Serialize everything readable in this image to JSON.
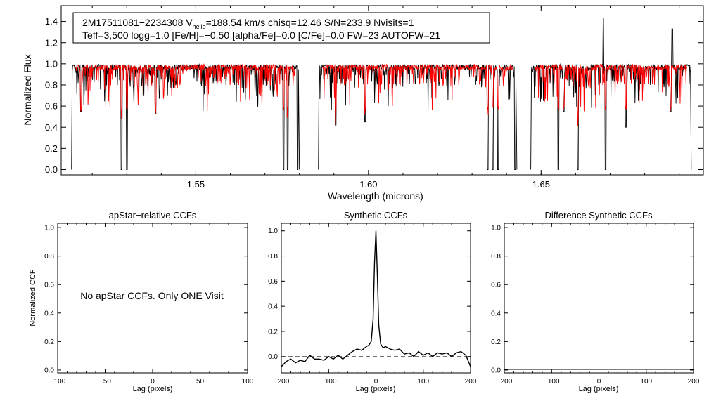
{
  "chart_data": [
    {
      "type": "line",
      "info_box": {
        "line1_prefix": "2M17511081−2234308  V",
        "line1_sub": "helio",
        "line1_suffix": "=188.54 km/s  chisq=12.46  S/N=233.9  Nvisits=1",
        "line2": "Teff=3,500 logg=1.0 [Fe/H]=−0.50 [alpha/Fe]=0.0 [C/Fe]=0.0 FW=23 AUTOFW=21"
      },
      "xlabel": "Wavelength (microns)",
      "ylabel": "Normalized Flux",
      "xlim": [
        1.511,
        1.697
      ],
      "ylim": [
        -0.05,
        1.55
      ],
      "xticks": [
        1.55,
        1.6,
        1.65
      ],
      "xtick_labels": [
        "1.55",
        "1.60",
        "1.65"
      ],
      "yticks": [
        0.0,
        0.2,
        0.4,
        0.6,
        0.8,
        1.0,
        1.2,
        1.4
      ],
      "ytick_labels": [
        "0.0",
        "0.2",
        "0.4",
        "0.6",
        "0.8",
        "1.0",
        "1.2",
        "1.4"
      ],
      "chips": [
        [
          1.514,
          1.58
        ],
        [
          1.5855,
          1.643
        ],
        [
          1.647,
          1.6935
        ]
      ],
      "strong_lines": [
        {
          "x": 1.5167,
          "y": 0.55
        },
        {
          "x": 1.5285,
          "y": 0.0
        },
        {
          "x": 1.53,
          "y": 0.0
        },
        {
          "x": 1.5383,
          "y": 0.53
        },
        {
          "x": 1.5754,
          "y": 0.0
        },
        {
          "x": 1.5766,
          "y": 0.0
        },
        {
          "x": 1.5795,
          "y": 0.0
        },
        {
          "x": 1.5905,
          "y": 0.42
        },
        {
          "x": 1.599,
          "y": 0.45
        },
        {
          "x": 1.6345,
          "y": 0.0
        },
        {
          "x": 1.636,
          "y": 0.0
        },
        {
          "x": 1.6375,
          "y": 0.0
        },
        {
          "x": 1.6425,
          "y": 0.0
        },
        {
          "x": 1.655,
          "y": 0.0
        },
        {
          "x": 1.6565,
          "y": 0.55
        },
        {
          "x": 1.6606,
          "y": 0.0
        },
        {
          "x": 1.6687,
          "y": 0.0
        },
        {
          "x": 1.6745,
          "y": 0.4
        },
        {
          "x": 1.6875,
          "y": 0.55
        }
      ],
      "emission_spikes": [
        {
          "x": 1.668,
          "y": 1.43
        },
        {
          "x": 1.688,
          "y": 1.33
        }
      ],
      "series": [
        {
          "name": "",
          "color": "#000000"
        },
        {
          "name": "",
          "color": "#ff0000"
        }
      ]
    },
    {
      "type": "line",
      "title": "apStar−relative CCFs",
      "xlabel": "Lag (pixels)",
      "ylabel": "Normalized CCF",
      "xlim": [
        -100,
        100
      ],
      "ylim": [
        -0.02,
        1.03
      ],
      "xticks": [
        -100,
        -50,
        0,
        50,
        100
      ],
      "xtick_labels": [
        "−100",
        "−50",
        "0",
        "50",
        "100"
      ],
      "yticks": [
        0.0,
        0.2,
        0.4,
        0.6,
        0.8,
        1.0
      ],
      "ytick_labels": [
        "0.0",
        "0.2",
        "0.4",
        "0.6",
        "0.8",
        "1.0"
      ],
      "annotation": "No apStar CCFs.  Only ONE Visit"
    },
    {
      "type": "line",
      "title": "Synthetic CCFs",
      "xlabel": "Lag (pixels)",
      "xlim": [
        -200,
        200
      ],
      "ylim": [
        -0.13,
        1.06
      ],
      "xticks": [
        -200,
        -100,
        0,
        100,
        200
      ],
      "xtick_labels": [
        "−200",
        "−100",
        "0",
        "100",
        "200"
      ],
      "yticks": [
        0.0,
        0.2,
        0.4,
        0.6,
        0.8,
        1.0
      ],
      "ytick_labels": [
        "0.0",
        "0.2",
        "0.4",
        "0.6",
        "0.8",
        "1.0"
      ],
      "peak": {
        "x": 0,
        "y": 1.0
      },
      "baseline": {
        "x": [
          -200,
          200
        ],
        "y": 0.0,
        "style": "dashed"
      },
      "series": [
        {
          "name": "",
          "x": [
            -200,
            -190,
            -180,
            -170,
            -160,
            -150,
            -140,
            -130,
            -120,
            -110,
            -100,
            -90,
            -80,
            -70,
            -60,
            -50,
            -40,
            -30,
            -20,
            -15,
            -10,
            -6,
            -3,
            0,
            3,
            6,
            10,
            15,
            20,
            30,
            40,
            50,
            60,
            70,
            80,
            90,
            100,
            110,
            120,
            130,
            140,
            150,
            160,
            170,
            180,
            190,
            200
          ],
          "y": [
            -0.08,
            -0.04,
            -0.02,
            -0.05,
            -0.03,
            -0.04,
            0.01,
            -0.02,
            -0.02,
            -0.03,
            0.0,
            -0.02,
            0.01,
            -0.02,
            0.01,
            0.04,
            0.06,
            0.05,
            0.08,
            0.09,
            0.12,
            0.3,
            0.75,
            1.0,
            0.65,
            0.25,
            0.1,
            0.07,
            0.08,
            0.06,
            0.05,
            0.06,
            0.02,
            0.03,
            0.0,
            0.04,
            0.01,
            0.03,
            0.0,
            0.03,
            0.02,
            0.03,
            0.0,
            0.03,
            0.04,
            0.01,
            -0.08
          ]
        }
      ]
    },
    {
      "type": "line",
      "title": "Difference Synthetic CCFs",
      "xlabel": "Lag (pixels)",
      "xlim": [
        -200,
        200
      ],
      "ylim": [
        -0.02,
        1.03
      ],
      "xticks": [
        -200,
        -100,
        0,
        100,
        200
      ],
      "xtick_labels": [
        "−200",
        "−100",
        "0",
        "100",
        "200"
      ],
      "yticks": [
        0.0,
        0.2,
        0.4,
        0.6,
        0.8,
        1.0
      ],
      "ytick_labels": [
        "0.0",
        "0.2",
        "0.4",
        "0.6",
        "0.8",
        "1.0"
      ]
    }
  ]
}
